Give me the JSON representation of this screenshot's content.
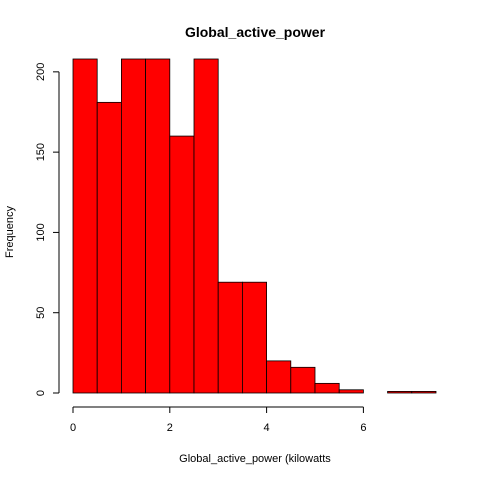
{
  "chart_data": {
    "type": "bar",
    "title": "Global_active_power",
    "xlabel": "Global_active_power (kilowatts",
    "ylabel": "Frequency",
    "bar_color": "#ff0000",
    "bin_edges": [
      0,
      0.5,
      1,
      1.5,
      2,
      2.5,
      3,
      3.5,
      4,
      4.5,
      5,
      5.5,
      6,
      6.5,
      7,
      7.5
    ],
    "values": [
      208,
      181,
      208,
      208,
      160,
      208,
      69,
      69,
      20,
      16,
      6,
      2,
      0,
      1,
      1
    ],
    "xlim": [
      0,
      7.5
    ],
    "ylim": [
      0,
      208
    ],
    "xticks": [
      0,
      2,
      4,
      6
    ],
    "yticks": [
      0,
      50,
      100,
      150,
      200
    ],
    "grid": false
  }
}
